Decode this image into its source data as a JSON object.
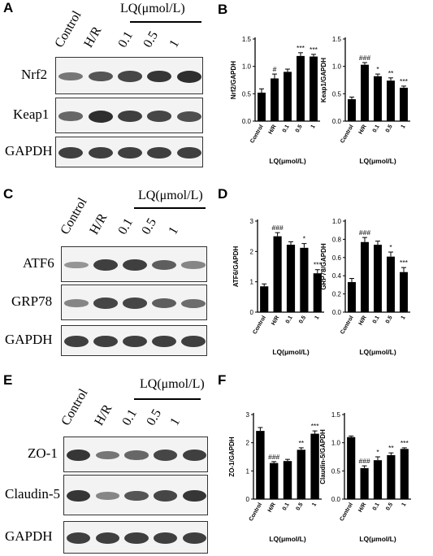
{
  "panels": {
    "A": {
      "letter": "A",
      "lq_title": "LQ(μmol/L)",
      "lanes": [
        "Control",
        "H/R",
        "0.1",
        "0.5",
        "1"
      ],
      "blots": [
        {
          "name": "Nrf2",
          "label": "Nrf2",
          "intensity": [
            0.45,
            0.65,
            0.75,
            0.85,
            0.9
          ]
        },
        {
          "name": "Keap1",
          "label": "Keap1",
          "intensity": [
            0.55,
            0.9,
            0.8,
            0.75,
            0.7
          ]
        },
        {
          "name": "GAPDH",
          "label": "GAPDH",
          "intensity": [
            0.8,
            0.8,
            0.8,
            0.8,
            0.8
          ]
        }
      ]
    },
    "B": {
      "letter": "B"
    },
    "C": {
      "letter": "C",
      "lq_title": "LQ(μmol/L)",
      "lanes": [
        "Control",
        "H/R",
        "0.1",
        "0.5",
        "1"
      ],
      "blots": [
        {
          "name": "ATF6",
          "label": "ATF6",
          "intensity": [
            0.25,
            0.8,
            0.8,
            0.6,
            0.35
          ]
        },
        {
          "name": "GRP78",
          "label": "GRP78",
          "intensity": [
            0.35,
            0.75,
            0.75,
            0.6,
            0.5
          ]
        },
        {
          "name": "GAPDH",
          "label": "GAPDH",
          "intensity": [
            0.8,
            0.8,
            0.8,
            0.8,
            0.8
          ]
        }
      ]
    },
    "D": {
      "letter": "D"
    },
    "E": {
      "letter": "E",
      "lq_title": "LQ(μmol/L)",
      "lanes": [
        "Control",
        "H/R",
        "0.1",
        "0.5",
        "1"
      ],
      "blots": [
        {
          "name": "ZO-1",
          "label": "ZO-1",
          "intensity": [
            0.85,
            0.45,
            0.55,
            0.75,
            0.8
          ]
        },
        {
          "name": "Claudin-5",
          "label": "Claudin-5",
          "intensity": [
            0.85,
            0.35,
            0.65,
            0.75,
            0.85
          ]
        },
        {
          "name": "GAPDH",
          "label": "GAPDH",
          "intensity": [
            0.8,
            0.8,
            0.8,
            0.8,
            0.8
          ]
        }
      ]
    },
    "F": {
      "letter": "F"
    }
  },
  "chart_data": [
    {
      "type": "bar",
      "panel": "B",
      "ylabel": "Nrf2/GAPDH",
      "xlabel": "LQ(μmol/L)",
      "categories": [
        "Control",
        "H/R",
        "0.1",
        "0.5",
        "1"
      ],
      "values": [
        0.52,
        0.78,
        0.9,
        1.19,
        1.18
      ],
      "errors": [
        0.07,
        0.08,
        0.05,
        0.06,
        0.04
      ],
      "annotations": [
        "",
        "#",
        "",
        "***",
        "***"
      ],
      "ylim": [
        0,
        1.5
      ],
      "yticks": [
        "0.0",
        "0.5",
        "1.0",
        "1.5"
      ]
    },
    {
      "type": "bar",
      "panel": "B",
      "ylabel": "Keap1/GAPDH",
      "xlabel": "LQ(μmol/L)",
      "categories": [
        "Control",
        "H/R",
        "0.1",
        "0.5",
        "1"
      ],
      "values": [
        0.4,
        1.03,
        0.82,
        0.74,
        0.61
      ],
      "errors": [
        0.04,
        0.04,
        0.04,
        0.05,
        0.03
      ],
      "annotations": [
        "",
        "###",
        "*",
        "**",
        "***"
      ],
      "ylim": [
        0,
        1.5
      ],
      "yticks": [
        "0.0",
        "0.5",
        "1.0",
        "1.5"
      ]
    },
    {
      "type": "bar",
      "panel": "D",
      "ylabel": "ATF6/GAPDH",
      "xlabel": "LQ(μmol/L)",
      "categories": [
        "Control",
        "H/R",
        "0.1",
        "0.5",
        "1"
      ],
      "values": [
        0.85,
        2.5,
        2.22,
        2.12,
        1.28
      ],
      "errors": [
        0.08,
        0.12,
        0.1,
        0.14,
        0.12
      ],
      "annotations": [
        "",
        "###",
        "",
        "*",
        "***"
      ],
      "ylim": [
        0,
        3
      ],
      "yticks": [
        "0",
        "1",
        "2",
        "3"
      ]
    },
    {
      "type": "bar",
      "panel": "D",
      "ylabel": "GRP78/GAPDH",
      "xlabel": "LQ(μmol/L)",
      "categories": [
        "Control",
        "H/R",
        "0.1",
        "0.5",
        "1"
      ],
      "values": [
        0.33,
        0.77,
        0.74,
        0.61,
        0.44
      ],
      "errors": [
        0.04,
        0.05,
        0.04,
        0.05,
        0.05
      ],
      "annotations": [
        "",
        "###",
        "",
        "*",
        "***"
      ],
      "ylim": [
        0,
        1.0
      ],
      "yticks": [
        "0.0",
        "0.2",
        "0.4",
        "0.6",
        "0.8",
        "1.0"
      ]
    },
    {
      "type": "bar",
      "panel": "F",
      "ylabel": "ZO-1/GAPDH",
      "xlabel": "LQ(μmol/L)",
      "categories": [
        "Control",
        "H/R",
        "0.1",
        "0.5",
        "1"
      ],
      "values": [
        2.42,
        1.28,
        1.35,
        1.75,
        2.32
      ],
      "errors": [
        0.12,
        0.05,
        0.06,
        0.07,
        0.1
      ],
      "annotations": [
        "",
        "###",
        "",
        "**",
        "***"
      ],
      "ylim": [
        0,
        3
      ],
      "yticks": [
        "0",
        "1",
        "2",
        "3"
      ]
    },
    {
      "type": "bar",
      "panel": "F",
      "ylabel": "Claudin-5/GAPDH",
      "xlabel": "LQ(μmol/L)",
      "categories": [
        "Control",
        "H/R",
        "0.1",
        "0.5",
        "1"
      ],
      "values": [
        1.1,
        0.55,
        0.69,
        0.78,
        0.89
      ],
      "errors": [
        0.02,
        0.04,
        0.06,
        0.04,
        0.02
      ],
      "annotations": [
        "",
        "###",
        "*",
        "**",
        "***"
      ],
      "ylim": [
        0,
        1.5
      ],
      "yticks": [
        "0.0",
        "0.5",
        "1.0",
        "1.5"
      ]
    }
  ]
}
